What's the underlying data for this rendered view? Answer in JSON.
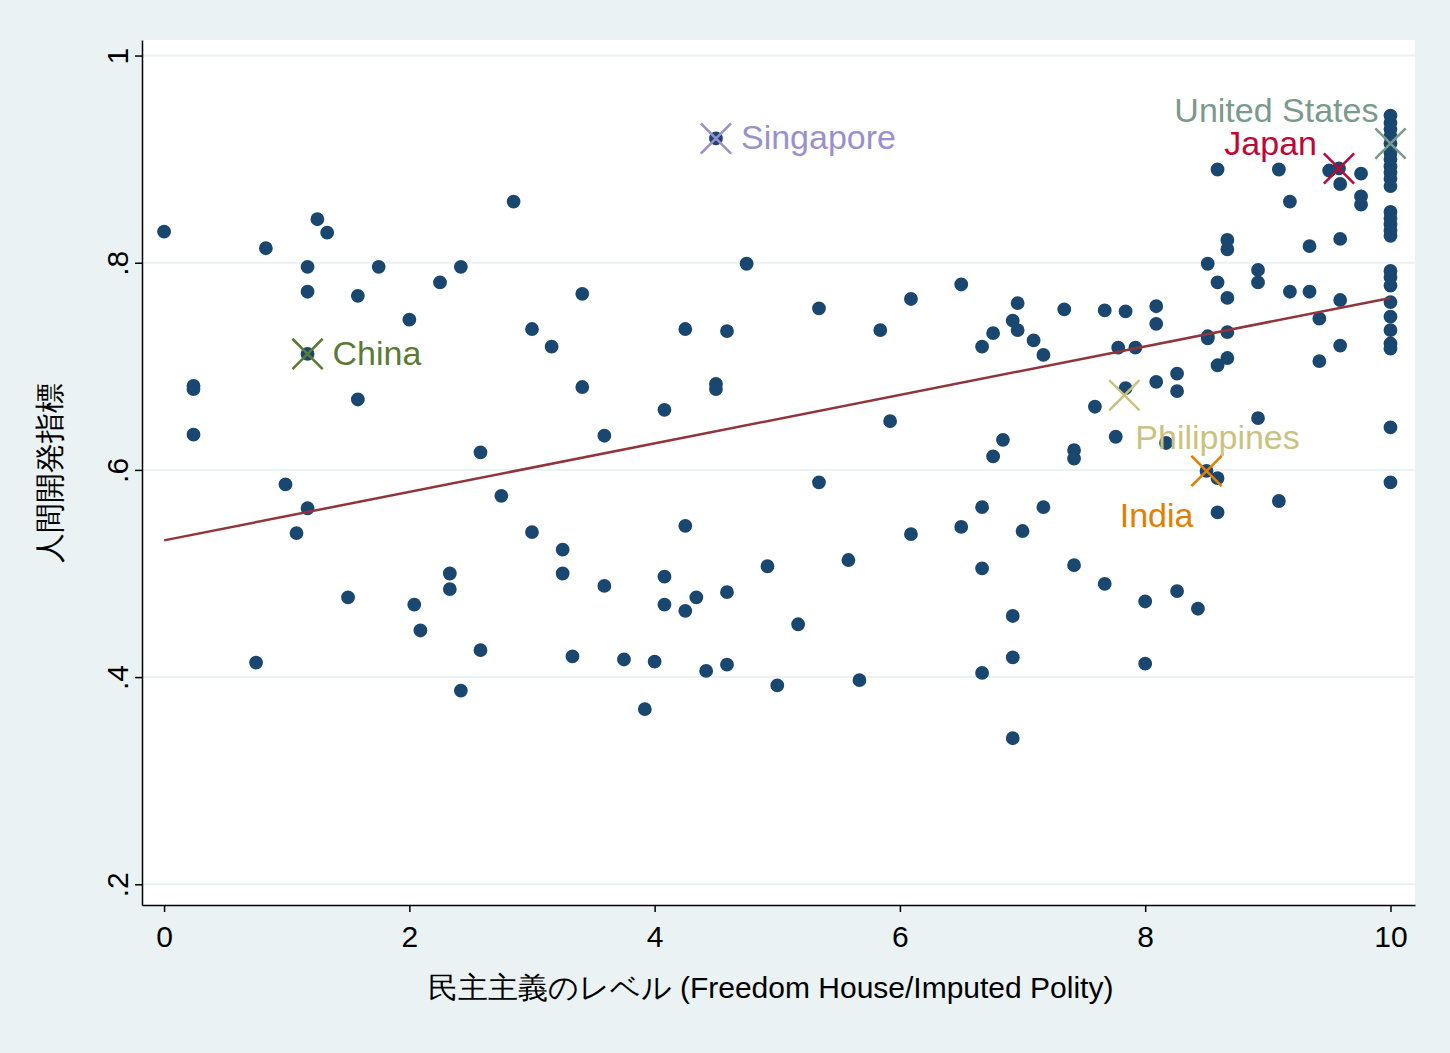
{
  "chart_data": {
    "type": "scatter",
    "x_label": "民主主義のレベル (Freedom House/Imputed Polity)",
    "y_label": "人間開発指標",
    "xlim": [
      -0.18,
      10.2
    ],
    "ylim": [
      0.18,
      1.015
    ],
    "xticks": [
      0,
      2,
      4,
      6,
      8,
      10
    ],
    "yticks": [
      {
        "value": 0.2,
        "label": ".2"
      },
      {
        "value": 0.4,
        "label": ".4"
      },
      {
        "value": 0.6,
        "label": ".6"
      },
      {
        "value": 0.8,
        "label": ".8"
      },
      {
        "value": 1,
        "label": "1"
      }
    ],
    "grid": true,
    "series": [
      {
        "type": "scatter",
        "color": "#1a476f",
        "marker": "circle",
        "x": [
          0,
          0.24,
          0.24,
          0.24,
          0.75,
          0.83,
          0.99,
          1.08,
          1.17,
          1.17,
          1.17,
          1.17,
          1.25,
          1.33,
          1.5,
          1.58,
          1.58,
          1.75,
          2.0,
          2.04,
          2.09,
          2.25,
          2.33,
          2.33,
          2.42,
          2.42,
          2.58,
          2.58,
          2.75,
          2.85,
          3.0,
          3.0,
          3.16,
          3.25,
          3.25,
          3.33,
          3.41,
          3.41,
          3.59,
          3.59,
          3.75,
          3.92,
          4.0,
          4.08,
          4.08,
          4.08,
          4.25,
          4.25,
          4.25,
          4.34,
          4.42,
          4.5,
          4.5,
          4.5,
          4.59,
          4.59,
          4.59,
          4.75,
          4.92,
          5.0,
          5.17,
          5.34,
          5.34,
          5.58,
          5.67,
          5.84,
          5.92,
          6.09,
          6.09,
          6.5,
          6.5,
          6.67,
          6.67,
          6.67,
          6.67,
          6.76,
          6.76,
          6.84,
          6.92,
          6.92,
          6.92,
          6.92,
          6.96,
          6.96,
          7.0,
          7.09,
          7.17,
          7.17,
          7.34,
          7.42,
          7.42,
          7.42,
          7.59,
          7.67,
          7.67,
          7.76,
          7.78,
          7.84,
          7.84,
          7.92,
          8.0,
          8.0,
          8.09,
          8.09,
          8.09,
          8.17,
          8.26,
          8.26,
          8.26,
          8.43,
          8.5,
          8.51,
          8.51,
          8.51,
          8.59,
          8.59,
          8.59,
          8.59,
          8.59,
          8.67,
          8.67,
          8.67,
          8.67,
          8.67,
          8.92,
          8.92,
          8.92,
          9.09,
          9.09,
          9.18,
          9.18,
          9.34,
          9.34,
          9.42,
          9.42,
          9.5,
          9.58,
          9.59,
          9.59,
          9.59,
          9.59,
          9.76,
          9.76,
          9.76,
          10,
          10,
          10,
          10,
          10,
          10,
          10,
          10,
          10,
          10,
          10,
          10,
          10,
          10,
          10,
          10,
          10,
          10,
          10,
          10,
          10,
          10,
          10,
          10,
          10,
          10
        ],
        "values": [
          0.83,
          0.681,
          0.678,
          0.634,
          0.414,
          0.814,
          0.586,
          0.539,
          0.796,
          0.772,
          0.712,
          0.563,
          0.842,
          0.829,
          0.477,
          0.768,
          0.668,
          0.796,
          0.745,
          0.47,
          0.445,
          0.781,
          0.5,
          0.485,
          0.796,
          0.387,
          0.617,
          0.426,
          0.575,
          0.859,
          0.736,
          0.54,
          0.719,
          0.523,
          0.5,
          0.42,
          0.77,
          0.68,
          0.488,
          0.633,
          0.417,
          0.369,
          0.415,
          0.658,
          0.497,
          0.47,
          0.736,
          0.546,
          0.464,
          0.477,
          0.406,
          0.92,
          0.683,
          0.678,
          0.734,
          0.482,
          0.412,
          0.799,
          0.507,
          0.392,
          0.451,
          0.756,
          0.588,
          0.513,
          0.397,
          0.735,
          0.647,
          0.765,
          0.538,
          0.779,
          0.545,
          0.719,
          0.564,
          0.505,
          0.404,
          0.732,
          0.613,
          0.629,
          0.744,
          0.459,
          0.419,
          0.341,
          0.761,
          0.735,
          0.541,
          0.725,
          0.711,
          0.564,
          0.755,
          0.619,
          0.611,
          0.508,
          0.661,
          0.754,
          0.49,
          0.632,
          0.718,
          0.753,
          0.679,
          0.718,
          0.473,
          0.413,
          0.758,
          0.741,
          0.685,
          0.626,
          0.693,
          0.676,
          0.483,
          0.466,
          0.599,
          0.799,
          0.729,
          0.727,
          0.89,
          0.781,
          0.701,
          0.592,
          0.559,
          0.822,
          0.813,
          0.766,
          0.733,
          0.708,
          0.793,
          0.781,
          0.65,
          0.89,
          0.57,
          0.859,
          0.772,
          0.816,
          0.772,
          0.746,
          0.705,
          0.889,
          0.891,
          0.876,
          0.823,
          0.764,
          0.72,
          0.886,
          0.864,
          0.856,
          0.942,
          0.935,
          0.929,
          0.922,
          0.915,
          0.906,
          0.9,
          0.893,
          0.887,
          0.881,
          0.874,
          0.849,
          0.843,
          0.837,
          0.831,
          0.826,
          0.792,
          0.786,
          0.778,
          0.762,
          0.748,
          0.735,
          0.722,
          0.717,
          0.641,
          0.588
        ]
      },
      {
        "type": "line",
        "color": "#90353b",
        "line_style": "solid",
        "x": [
          0,
          10
        ],
        "values": [
          0.532,
          0.766
        ]
      }
    ],
    "annotations": [
      {
        "text": "Singapore",
        "x": 4.5,
        "y": 0.92,
        "color": "#9a90cf",
        "marker": "x"
      },
      {
        "text": "China",
        "x": 1.17,
        "y": 0.712,
        "color": "#5a7a35",
        "marker": "x"
      },
      {
        "text": "United States",
        "x": 10,
        "y": 0.915,
        "color": "#7a9a8c",
        "marker": "x"
      },
      {
        "text": "Japan",
        "x": 9.58,
        "y": 0.891,
        "color": "#c10534",
        "marker": "x"
      },
      {
        "text": "Philippines",
        "x": 7.83,
        "y": 0.672,
        "color": "#cbc27f",
        "marker": "x"
      },
      {
        "text": "India",
        "x": 8.5,
        "y": 0.599,
        "color": "#e37e00",
        "marker": "x"
      }
    ]
  }
}
